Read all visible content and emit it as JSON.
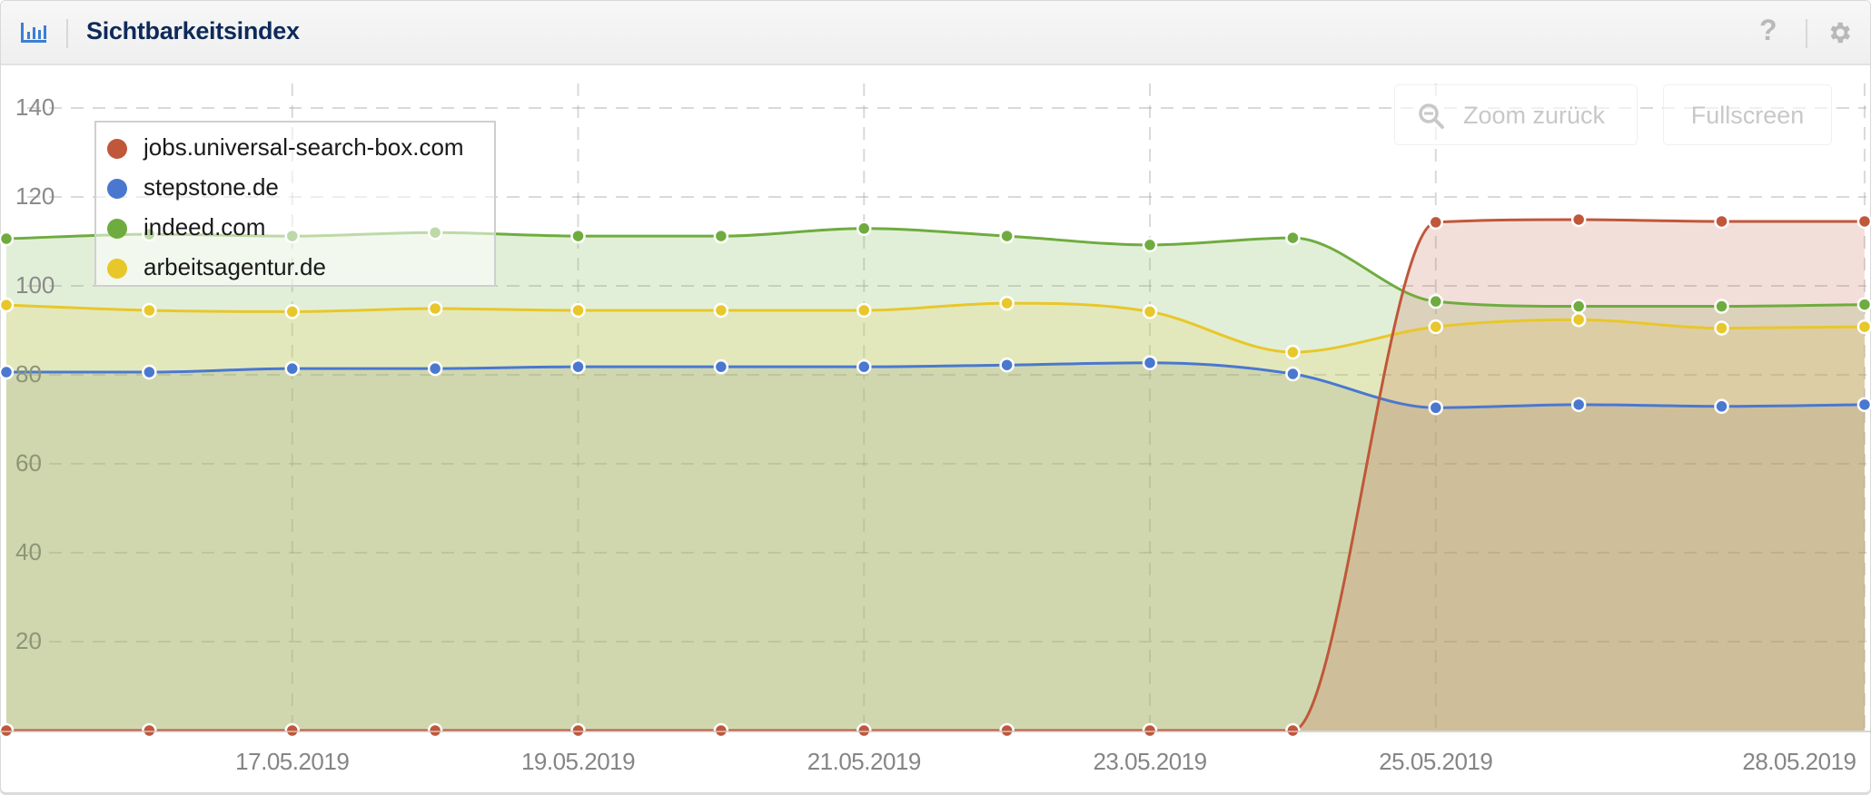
{
  "header": {
    "title": "Sichtbarkeitsindex",
    "icons": {
      "left": "bar-chart-icon",
      "help": "help-icon",
      "settings": "gear-icon"
    },
    "help_glyph": "?"
  },
  "toolbar": {
    "zoom_back_label": "Zoom zurück",
    "fullscreen_label": "Fullscreen"
  },
  "colors": {
    "brand_title": "#0e2a5a",
    "icon_blue": "#3b7fd4",
    "red": "#c0573a",
    "blue": "#4a78cf",
    "green": "#6fac3f",
    "yellow": "#e8c72a"
  },
  "chart_data": {
    "type": "area",
    "title": "Sichtbarkeitsindex",
    "xlabel": "",
    "ylabel": "",
    "ylim": [
      0,
      140
    ],
    "yticks": [
      20,
      40,
      60,
      80,
      100,
      120,
      140
    ],
    "grid": true,
    "legend_position": "top-left",
    "x": [
      "15.05.2019",
      "16.05.2019",
      "17.05.2019",
      "18.05.2019",
      "19.05.2019",
      "20.05.2019",
      "21.05.2019",
      "22.05.2019",
      "23.05.2019",
      "24.05.2019",
      "25.05.2019",
      "26.05.2019",
      "27.05.2019",
      "28.05.2019"
    ],
    "xtick_labels": [
      {
        "label": "17.05.2019",
        "index": 2
      },
      {
        "label": "19.05.2019",
        "index": 4
      },
      {
        "label": "21.05.2019",
        "index": 6
      },
      {
        "label": "23.05.2019",
        "index": 8
      },
      {
        "label": "25.05.2019",
        "index": 10
      },
      {
        "label": "28.05.2019",
        "index": 13
      }
    ],
    "series": [
      {
        "name": "jobs.universal-search-box.com",
        "color": "#c0573a",
        "fill": "rgba(200,110,85,0.22)",
        "values": [
          0,
          0,
          0,
          0,
          0,
          0,
          0,
          0,
          0,
          0,
          114.3,
          114.9,
          114.5,
          114.5
        ]
      },
      {
        "name": "stepstone.de",
        "color": "#4a78cf",
        "fill": "rgba(120,140,110,0.18)",
        "values": [
          80.6,
          80.6,
          81.4,
          81.4,
          81.8,
          81.8,
          81.8,
          82.2,
          82.7,
          80.2,
          72.6,
          73.3,
          72.9,
          73.3
        ]
      },
      {
        "name": "indeed.com",
        "color": "#6fac3f",
        "fill": "rgba(140,190,100,0.25)",
        "values": [
          110.6,
          111.6,
          111.2,
          112.0,
          111.2,
          111.2,
          112.9,
          111.2,
          109.2,
          110.8,
          96.5,
          95.4,
          95.4,
          95.8
        ]
      },
      {
        "name": "arbeitsagentur.de",
        "color": "#e8c72a",
        "fill": "rgba(230,210,90,0.22)",
        "values": [
          95.7,
          94.5,
          94.2,
          94.9,
          94.5,
          94.5,
          94.5,
          96.1,
          94.2,
          85.1,
          90.8,
          92.4,
          90.5,
          90.8
        ]
      }
    ]
  }
}
